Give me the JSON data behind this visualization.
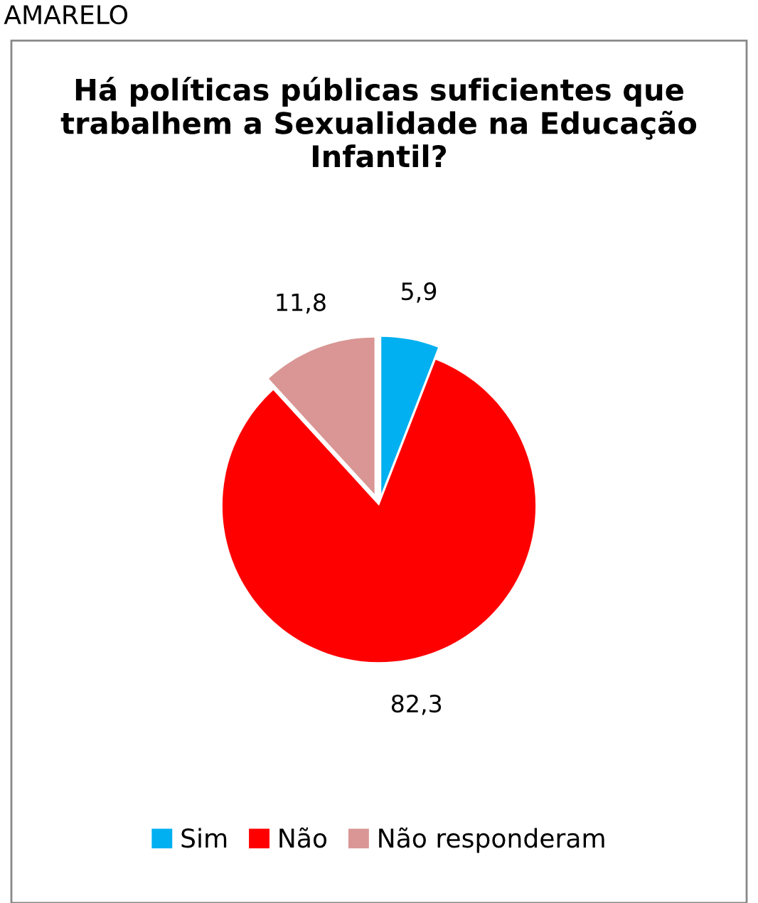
{
  "chart_data": {
    "type": "pie",
    "title": "Há políticas públicas suficientes que trabalhem a Sexualidade na Educação Infantil?",
    "categories": [
      "Sim",
      "Não",
      "Não responderam"
    ],
    "values": [
      5.9,
      82.3,
      11.8
    ],
    "value_labels": [
      "5,9",
      "82,3",
      "11,8"
    ],
    "colors": [
      "#00b0f0",
      "#ff0000",
      "#d99694"
    ],
    "legend": "bottom",
    "annotations": [
      "AMARELO"
    ]
  }
}
